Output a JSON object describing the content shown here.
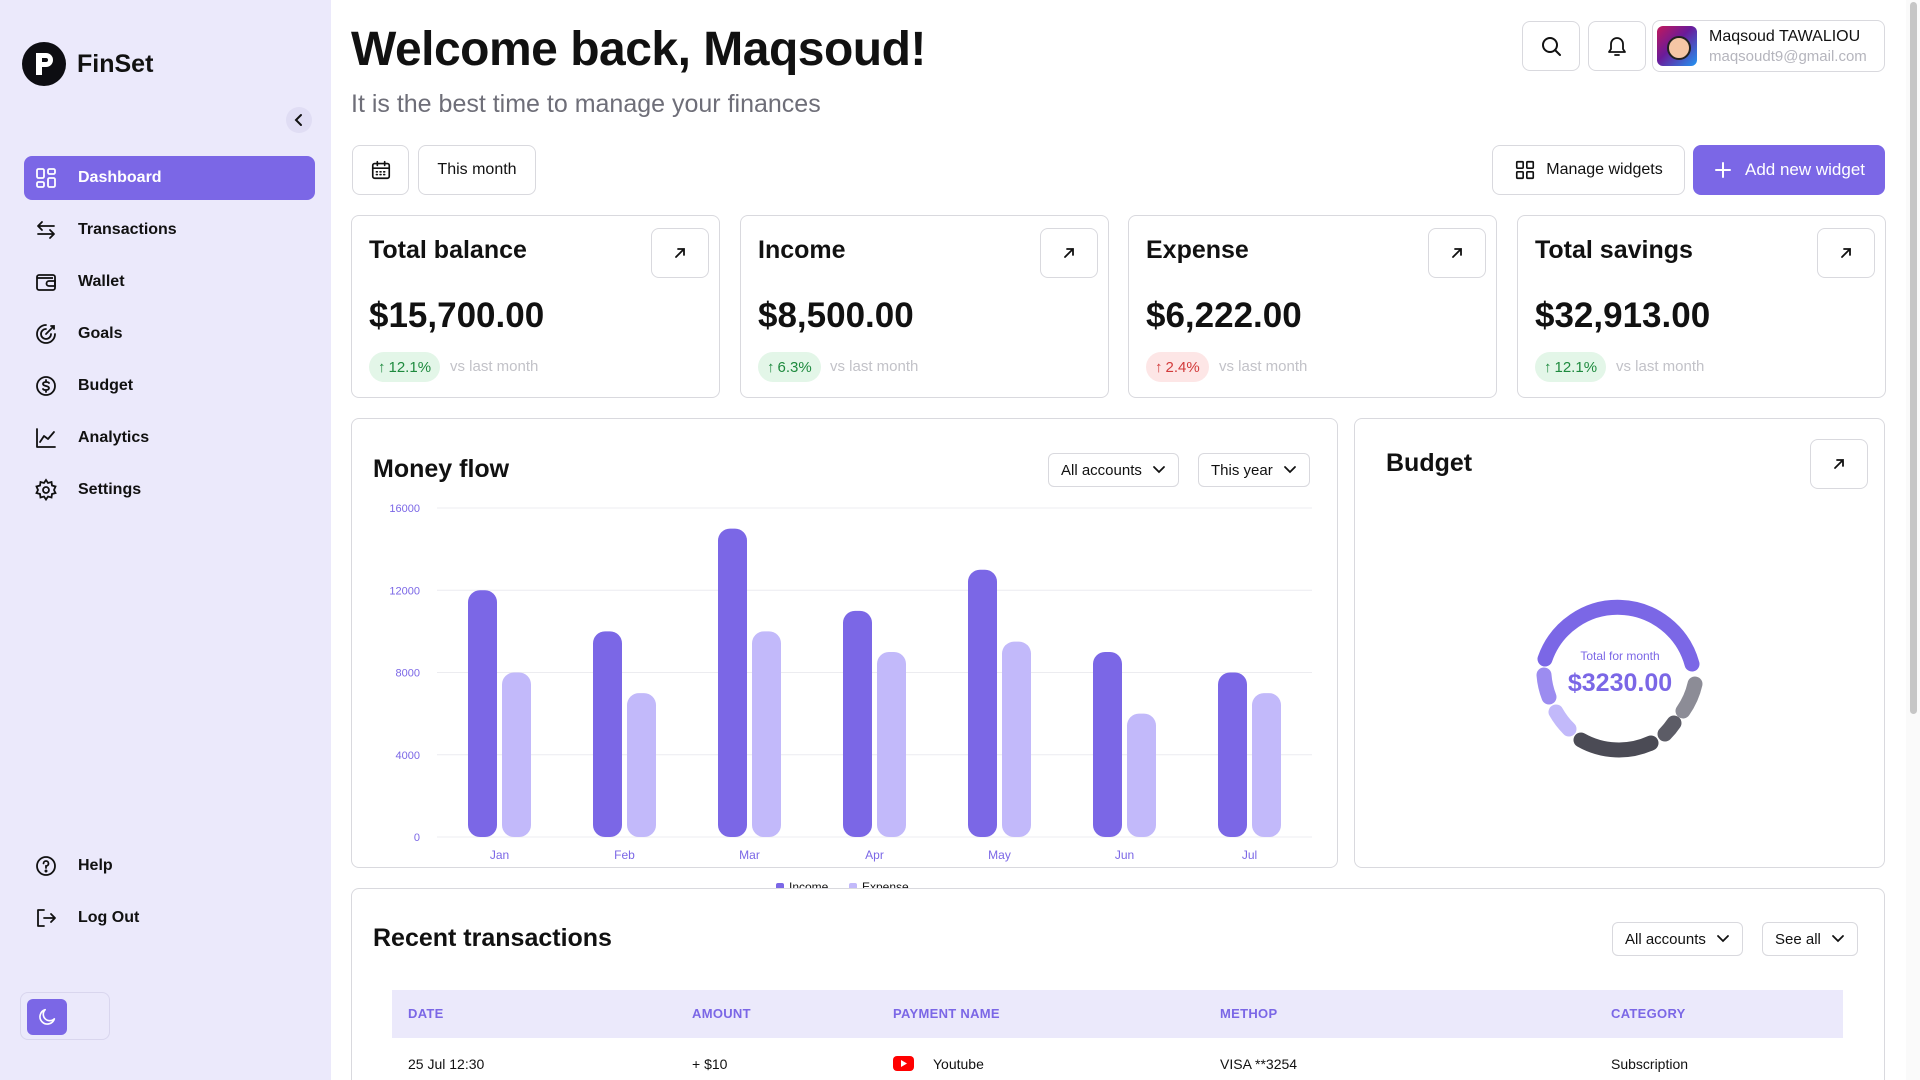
{
  "app": {
    "name": "FinSet"
  },
  "sidebar": {
    "items": [
      {
        "label": "Dashboard",
        "icon": "dashboard-icon",
        "active": true
      },
      {
        "label": "Transactions",
        "icon": "transactions-icon"
      },
      {
        "label": "Wallet",
        "icon": "wallet-icon"
      },
      {
        "label": "Goals",
        "icon": "goals-icon"
      },
      {
        "label": "Budget",
        "icon": "budget-icon"
      },
      {
        "label": "Analytics",
        "icon": "analytics-icon"
      },
      {
        "label": "Settings",
        "icon": "gear-icon"
      }
    ],
    "bottom": [
      {
        "label": "Help",
        "icon": "help-icon"
      },
      {
        "label": "Log Out",
        "icon": "logout-icon"
      }
    ]
  },
  "header": {
    "title": "Welcome back, Maqsoud!",
    "subtitle": "It is the best time to manage your finances",
    "user_name": "Maqsoud TAWALIOU",
    "user_email": "maqsoudt9@gmail.com"
  },
  "toolbar": {
    "period": "This month",
    "manage_widgets": "Manage widgets",
    "add_widget": "Add new widget"
  },
  "stats": [
    {
      "title": "Total balance",
      "value": "$15,700.00",
      "change": "12.1%",
      "direction": "up",
      "vs": "vs last month"
    },
    {
      "title": "Income",
      "value": "$8,500.00",
      "change": "6.3%",
      "direction": "up",
      "vs": "vs last month"
    },
    {
      "title": "Expense",
      "value": "$6,222.00",
      "direction": "down",
      "change": "2.4%",
      "vs": "vs last month"
    },
    {
      "title": "Total savings",
      "value": "$32,913.00",
      "change": "12.1%",
      "direction": "up",
      "vs": "vs last month"
    }
  ],
  "money_flow": {
    "title": "Money flow",
    "accounts_filter": "All accounts",
    "period_filter": "This year"
  },
  "chart_data": {
    "type": "bar",
    "title": "Money flow",
    "categories": [
      "Jan",
      "Feb",
      "Mar",
      "Apr",
      "May",
      "Jun",
      "Jul"
    ],
    "series": [
      {
        "name": "Income",
        "color": "#7b67e6",
        "values": [
          12000,
          10000,
          15000,
          11000,
          13000,
          9000,
          8000
        ]
      },
      {
        "name": "Expense",
        "color": "#c2b9fa",
        "values": [
          8000,
          7000,
          10000,
          9000,
          9500,
          6000,
          7000
        ]
      }
    ],
    "yticks": [
      "16000",
      "12000",
      "8000",
      "4000",
      "0"
    ],
    "ylim": [
      0,
      16000
    ],
    "legend_position": "bottom"
  },
  "budget": {
    "title": "Budget",
    "center_label": "Total for month",
    "center_value": "$3230.00"
  },
  "transactions": {
    "title": "Recent transactions",
    "accounts_filter": "All accounts",
    "see_all": "See all",
    "columns": [
      "DATE",
      "AMOUNT",
      "PAYMENT NAME",
      "METHOP",
      "CATEGORY"
    ],
    "rows": [
      {
        "date": "25 Jul 12:30",
        "amount": "+ $10",
        "payment_name": "Youtube",
        "method": "VISA **3254",
        "category": "Subscription"
      }
    ]
  }
}
